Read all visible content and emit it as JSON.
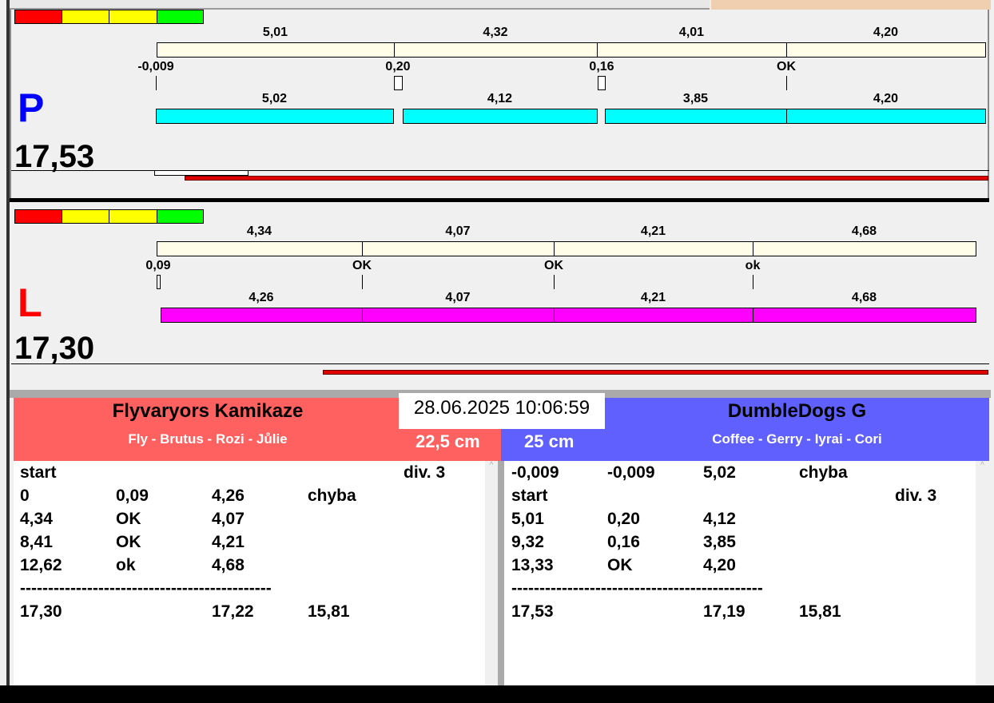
{
  "colors": {
    "top_bar": "#fffde8",
    "p_bar": "#00ffff",
    "l_bar": "#ff00ff",
    "progress": "#e00000",
    "p_letter": "#0000ff",
    "l_letter": "#ff0000",
    "left_team": "#ff6060",
    "right_team": "#6060ff"
  },
  "traffic_light": [
    "#ff0000",
    "#ffff00",
    "#ffff00",
    "#00ff00"
  ],
  "p_panel": {
    "letter": "P",
    "total": "17,53",
    "top_labels": [
      "5,01",
      "4,32",
      "4,01",
      "4,20"
    ],
    "mid_labels": [
      "-0,009",
      "0,20",
      "0,16",
      "OK"
    ],
    "bottom_labels": [
      "5,02",
      "4,12",
      "3,85",
      "4,20"
    ]
  },
  "l_panel": {
    "letter": "L",
    "total": "17,30",
    "top_labels": [
      "4,34",
      "4,07",
      "4,21",
      "4,68"
    ],
    "mid_labels": [
      "0,09",
      "OK",
      "OK",
      "ok"
    ],
    "bottom_labels": [
      "4,26",
      "4,07",
      "4,21",
      "4,68"
    ]
  },
  "datetime": "28.06.2025 10:06:59",
  "left_team": {
    "name": "Flyvaryors Kamikaze",
    "dogs": "Fly - Brutus - Rozi - Jůlie",
    "height": "22,5 cm",
    "rows": [
      [
        "start",
        "",
        "",
        "",
        "div.  3"
      ],
      [
        "0",
        "0,09",
        "4,26",
        "chyba",
        ""
      ],
      [
        "4,34",
        "OK",
        "4,07",
        "",
        ""
      ],
      [
        "8,41",
        "OK",
        "4,21",
        "",
        ""
      ],
      [
        "12,62",
        "ok",
        "4,68",
        "",
        ""
      ],
      [
        "---------------------------------------------",
        "",
        "",
        "",
        ""
      ],
      [
        "17,30",
        "",
        "17,22",
        "15,81",
        ""
      ]
    ]
  },
  "right_team": {
    "name": "DumbleDogs G",
    "dogs": "Coffee - Gerry - Iyrai - Cori",
    "height": "25 cm",
    "rows": [
      [
        "-0,009",
        "-0,009",
        "5,02",
        "chyba",
        ""
      ],
      [
        "start",
        "",
        "",
        "",
        "div.  3"
      ],
      [
        "5,01",
        "0,20",
        "4,12",
        "",
        ""
      ],
      [
        "9,32",
        "0,16",
        "3,85",
        "",
        ""
      ],
      [
        "13,33",
        "OK",
        "4,20",
        "",
        ""
      ],
      [
        "---------------------------------------------",
        "",
        "",
        "",
        ""
      ],
      [
        "17,53",
        "",
        "17,19",
        "15,81",
        ""
      ]
    ]
  }
}
